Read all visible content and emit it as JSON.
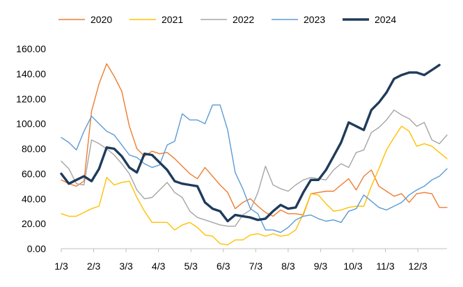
{
  "chart_data": {
    "type": "line",
    "title": "",
    "xlabel": "",
    "ylabel": "",
    "ylim": [
      0,
      160
    ],
    "yticks": [
      "0.00",
      "20.00",
      "40.00",
      "60.00",
      "80.00",
      "100.00",
      "120.00",
      "140.00",
      "160.00"
    ],
    "xticks": [
      "1/3",
      "2/3",
      "3/3",
      "4/3",
      "5/3",
      "6/3",
      "7/3",
      "8/3",
      "9/3",
      "10/3",
      "11/3",
      "12/3"
    ],
    "x_week_range": [
      1,
      52
    ],
    "grid": false,
    "legend_position": "top",
    "series": [
      {
        "name": "2020",
        "color": "#ED7D31",
        "width": 1.4,
        "values": [
          55,
          52,
          50,
          54,
          110,
          132,
          148,
          138,
          126,
          98,
          80,
          74,
          78,
          76,
          77,
          72,
          66,
          60,
          56,
          65,
          58,
          51,
          45,
          32,
          37,
          40,
          34,
          29,
          26,
          31,
          28,
          28,
          27,
          44,
          45,
          46,
          46,
          51,
          56,
          47,
          58,
          63,
          50,
          46,
          42,
          44,
          37,
          44,
          45,
          44,
          33,
          33
        ]
      },
      {
        "name": "2021",
        "color": "#FFC000",
        "width": 1.4,
        "values": [
          28,
          26,
          26,
          29,
          32,
          34,
          57,
          51,
          53,
          54,
          41,
          30,
          21,
          21,
          21,
          15,
          19,
          21,
          17,
          11,
          10,
          4,
          3,
          7,
          7,
          11,
          12,
          10,
          12,
          10,
          11,
          15,
          28,
          44,
          43,
          36,
          30,
          31,
          33,
          34,
          34,
          50,
          64,
          79,
          89,
          98,
          94,
          82,
          84,
          82,
          77,
          72
        ]
      },
      {
        "name": "2022",
        "color": "#A5A5A5",
        "width": 1.4,
        "values": [
          70,
          64,
          52,
          51,
          87,
          84,
          80,
          75,
          68,
          60,
          47,
          40,
          41,
          47,
          53,
          45,
          41,
          30,
          25,
          23,
          21,
          19,
          18,
          18,
          27,
          31,
          45,
          66,
          51,
          48,
          46,
          51,
          55,
          57,
          56,
          55,
          63,
          68,
          65,
          77,
          79,
          93,
          97,
          103,
          111,
          107,
          104,
          98,
          101,
          87,
          84,
          91
        ]
      },
      {
        "name": "2023",
        "color": "#5B9BD5",
        "width": 1.4,
        "values": [
          89,
          85,
          79,
          94,
          106,
          100,
          94,
          91,
          83,
          75,
          73,
          68,
          65,
          67,
          83,
          86,
          108,
          103,
          103,
          100,
          115,
          115,
          95,
          61,
          48,
          32,
          28,
          15,
          15,
          13,
          17,
          23,
          26,
          27,
          24,
          22,
          23,
          21,
          30,
          32,
          43,
          38,
          33,
          31,
          34,
          37,
          43,
          47,
          50,
          55,
          58,
          64
        ]
      },
      {
        "name": "2024",
        "color": "#1F3B5B",
        "width": 3.4,
        "values": [
          60,
          52,
          55,
          58,
          54,
          64,
          81,
          80,
          74,
          65,
          61,
          76,
          75,
          69,
          63,
          54,
          52,
          51,
          50,
          37,
          32,
          30,
          22,
          27,
          26,
          25,
          23,
          24,
          30,
          35,
          32,
          33,
          45,
          55,
          55,
          63,
          74,
          85,
          101,
          98,
          95,
          111,
          117,
          125,
          136,
          139,
          141,
          141,
          139,
          143,
          147
        ]
      }
    ]
  }
}
